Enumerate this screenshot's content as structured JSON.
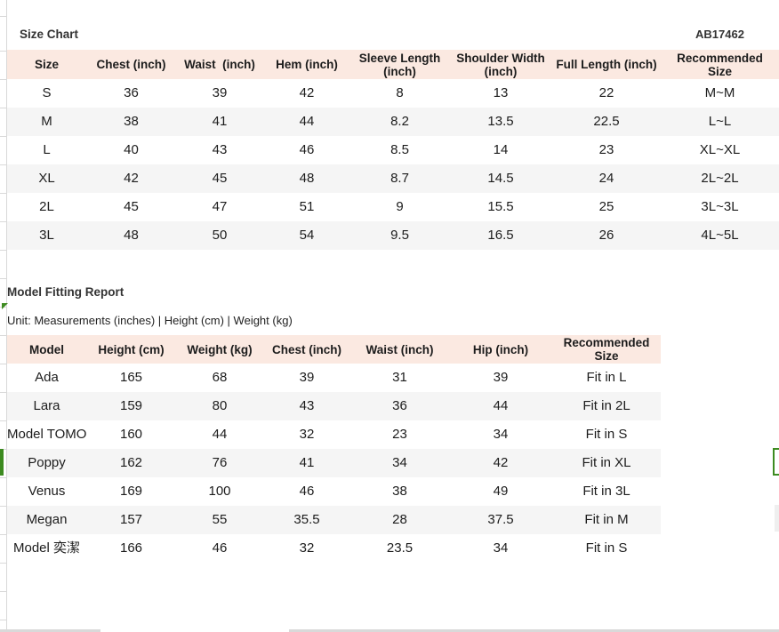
{
  "page": {
    "item_code": "AB17462"
  },
  "size_chart": {
    "title": "Size Chart",
    "columns": [
      "Size",
      "Chest (inch)",
      "Waist  (inch)",
      "Hem (inch)",
      "Sleeve Length (inch)",
      "Shoulder Width (inch)",
      "Full Length (inch)",
      "Recommended Size"
    ],
    "rows": [
      [
        "S",
        "36",
        "39",
        "42",
        "8",
        "13",
        "22",
        "M~M"
      ],
      [
        "M",
        "38",
        "41",
        "44",
        "8.2",
        "13.5",
        "22.5",
        "L~L"
      ],
      [
        "L",
        "40",
        "43",
        "46",
        "8.5",
        "14",
        "23",
        "XL~XL"
      ],
      [
        "XL",
        "42",
        "45",
        "48",
        "8.7",
        "14.5",
        "24",
        "2L~2L"
      ],
      [
        "2L",
        "45",
        "47",
        "51",
        "9",
        "15.5",
        "25",
        "3L~3L"
      ],
      [
        "3L",
        "48",
        "50",
        "54",
        "9.5",
        "16.5",
        "26",
        "4L~5L"
      ]
    ]
  },
  "model_fitting_report": {
    "title": "Model Fitting Report",
    "unit_note": "Unit: Measurements (inches) | Height (cm) | Weight (kg)",
    "columns": [
      "Model",
      "Height (cm)",
      "Weight (kg)",
      "Chest (inch)",
      "Waist (inch)",
      "Hip (inch)",
      "Recommended Size"
    ],
    "rows": [
      [
        "Ada",
        "165",
        "68",
        "39",
        "31",
        "39",
        "Fit in L"
      ],
      [
        "Lara",
        "159",
        "80",
        "43",
        "36",
        "44",
        "Fit in 2L"
      ],
      [
        "Model TOMO",
        "160",
        "44",
        "32",
        "23",
        "34",
        "Fit in S"
      ],
      [
        "Poppy",
        "162",
        "76",
        "41",
        "34",
        "42",
        "Fit in XL"
      ],
      [
        "Venus",
        "169",
        "100",
        "46",
        "38",
        "49",
        "Fit in 3L"
      ],
      [
        "Megan",
        "157",
        "55",
        "35.5",
        "28",
        "37.5",
        "Fit in M"
      ],
      [
        "Model 奕潔",
        "166",
        "46",
        "32",
        "23.5",
        "34",
        "Fit in S"
      ]
    ]
  },
  "colors": {
    "header_bg": "#fbe9e1",
    "stripe_bg": "#f5f5f5",
    "accent_green": "#3d8b20",
    "gridline": "#d9d9d9"
  }
}
